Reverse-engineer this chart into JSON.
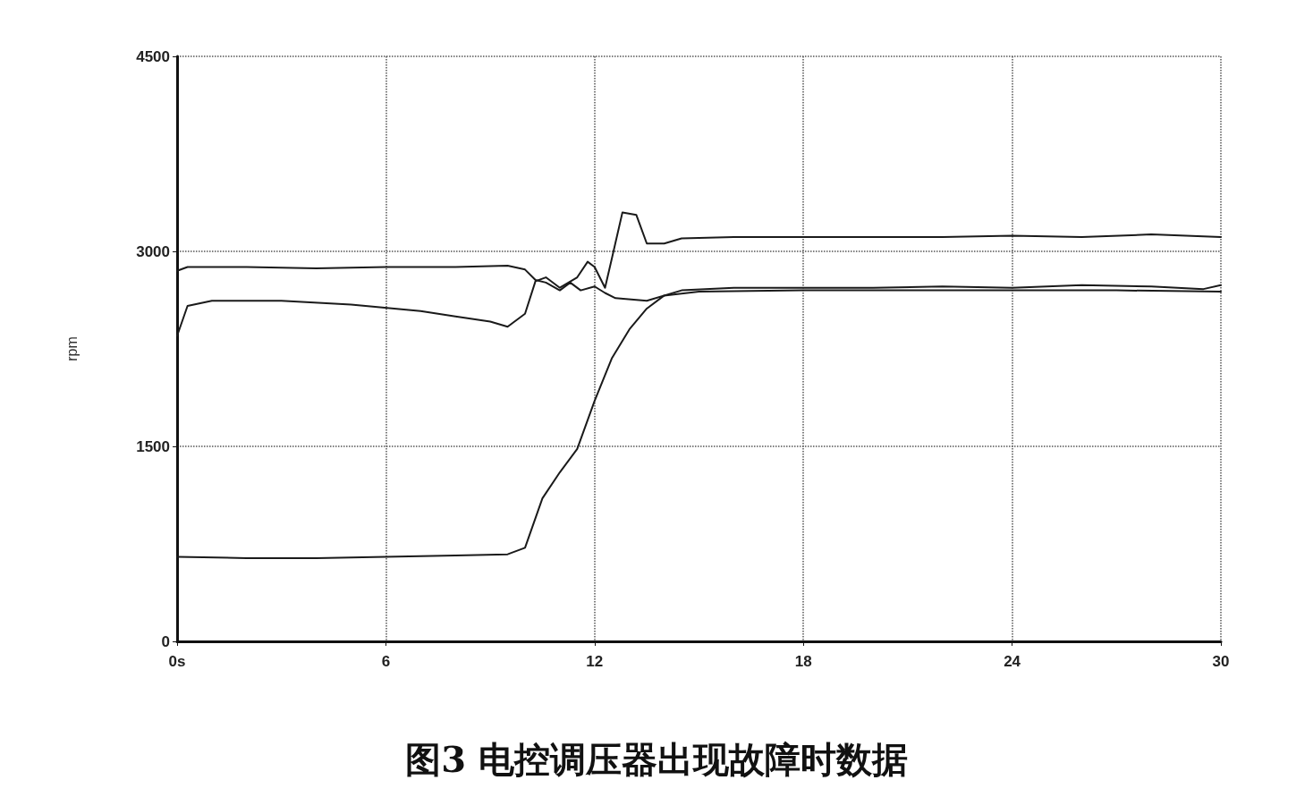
{
  "chart_data": {
    "type": "line",
    "title": "图3 电控调压器出现故障时数据",
    "ylabel": "rpm",
    "xlim": [
      0,
      30
    ],
    "xticks": [
      {
        "value": 0,
        "label": "0s"
      },
      6,
      12,
      18,
      24,
      30
    ],
    "ylim": [
      0,
      4500
    ],
    "yticks": [
      0,
      1500,
      3000,
      4500
    ],
    "grid": true,
    "marker": "none",
    "line_style": "solid",
    "series": [
      {
        "color": "#1a1a1a",
        "x": [
          0,
          0.3,
          2,
          4,
          6,
          8,
          9.5,
          10,
          10.3,
          10.6,
          11,
          11.3,
          11.6,
          12,
          12.3,
          12.6,
          13.5,
          14.5,
          16,
          18,
          20,
          22,
          24,
          26,
          28,
          29.5,
          30
        ],
        "values": [
          2850,
          2880,
          2880,
          2870,
          2880,
          2880,
          2890,
          2860,
          2780,
          2760,
          2700,
          2760,
          2700,
          2730,
          2680,
          2640,
          2620,
          2700,
          2720,
          2720,
          2720,
          2730,
          2720,
          2740,
          2730,
          2710,
          2740
        ]
      },
      {
        "color": "#1a1a1a",
        "x": [
          0,
          0.3,
          1,
          3,
          5,
          7,
          8,
          9,
          9.5,
          10,
          10.3,
          10.6,
          11,
          11.5,
          11.8,
          12,
          12.3,
          12.5,
          12.8,
          13.2,
          13.5,
          14,
          14.5,
          16,
          18,
          20,
          22,
          24,
          26,
          28,
          30
        ],
        "values": [
          2350,
          2580,
          2620,
          2620,
          2590,
          2540,
          2500,
          2460,
          2420,
          2520,
          2770,
          2800,
          2720,
          2800,
          2920,
          2880,
          2720,
          2950,
          3300,
          3280,
          3060,
          3060,
          3100,
          3110,
          3110,
          3110,
          3110,
          3120,
          3110,
          3130,
          3110
        ]
      },
      {
        "color": "#1a1a1a",
        "x": [
          0,
          2,
          4,
          6,
          8,
          9.5,
          10,
          10.5,
          11,
          11.5,
          12,
          12.5,
          13,
          13.5,
          14,
          15,
          18,
          21,
          24,
          27,
          30
        ],
        "values": [
          650,
          640,
          640,
          650,
          660,
          670,
          720,
          1100,
          1300,
          1480,
          1850,
          2180,
          2400,
          2560,
          2660,
          2690,
          2700,
          2700,
          2700,
          2700,
          2690
        ]
      }
    ]
  }
}
